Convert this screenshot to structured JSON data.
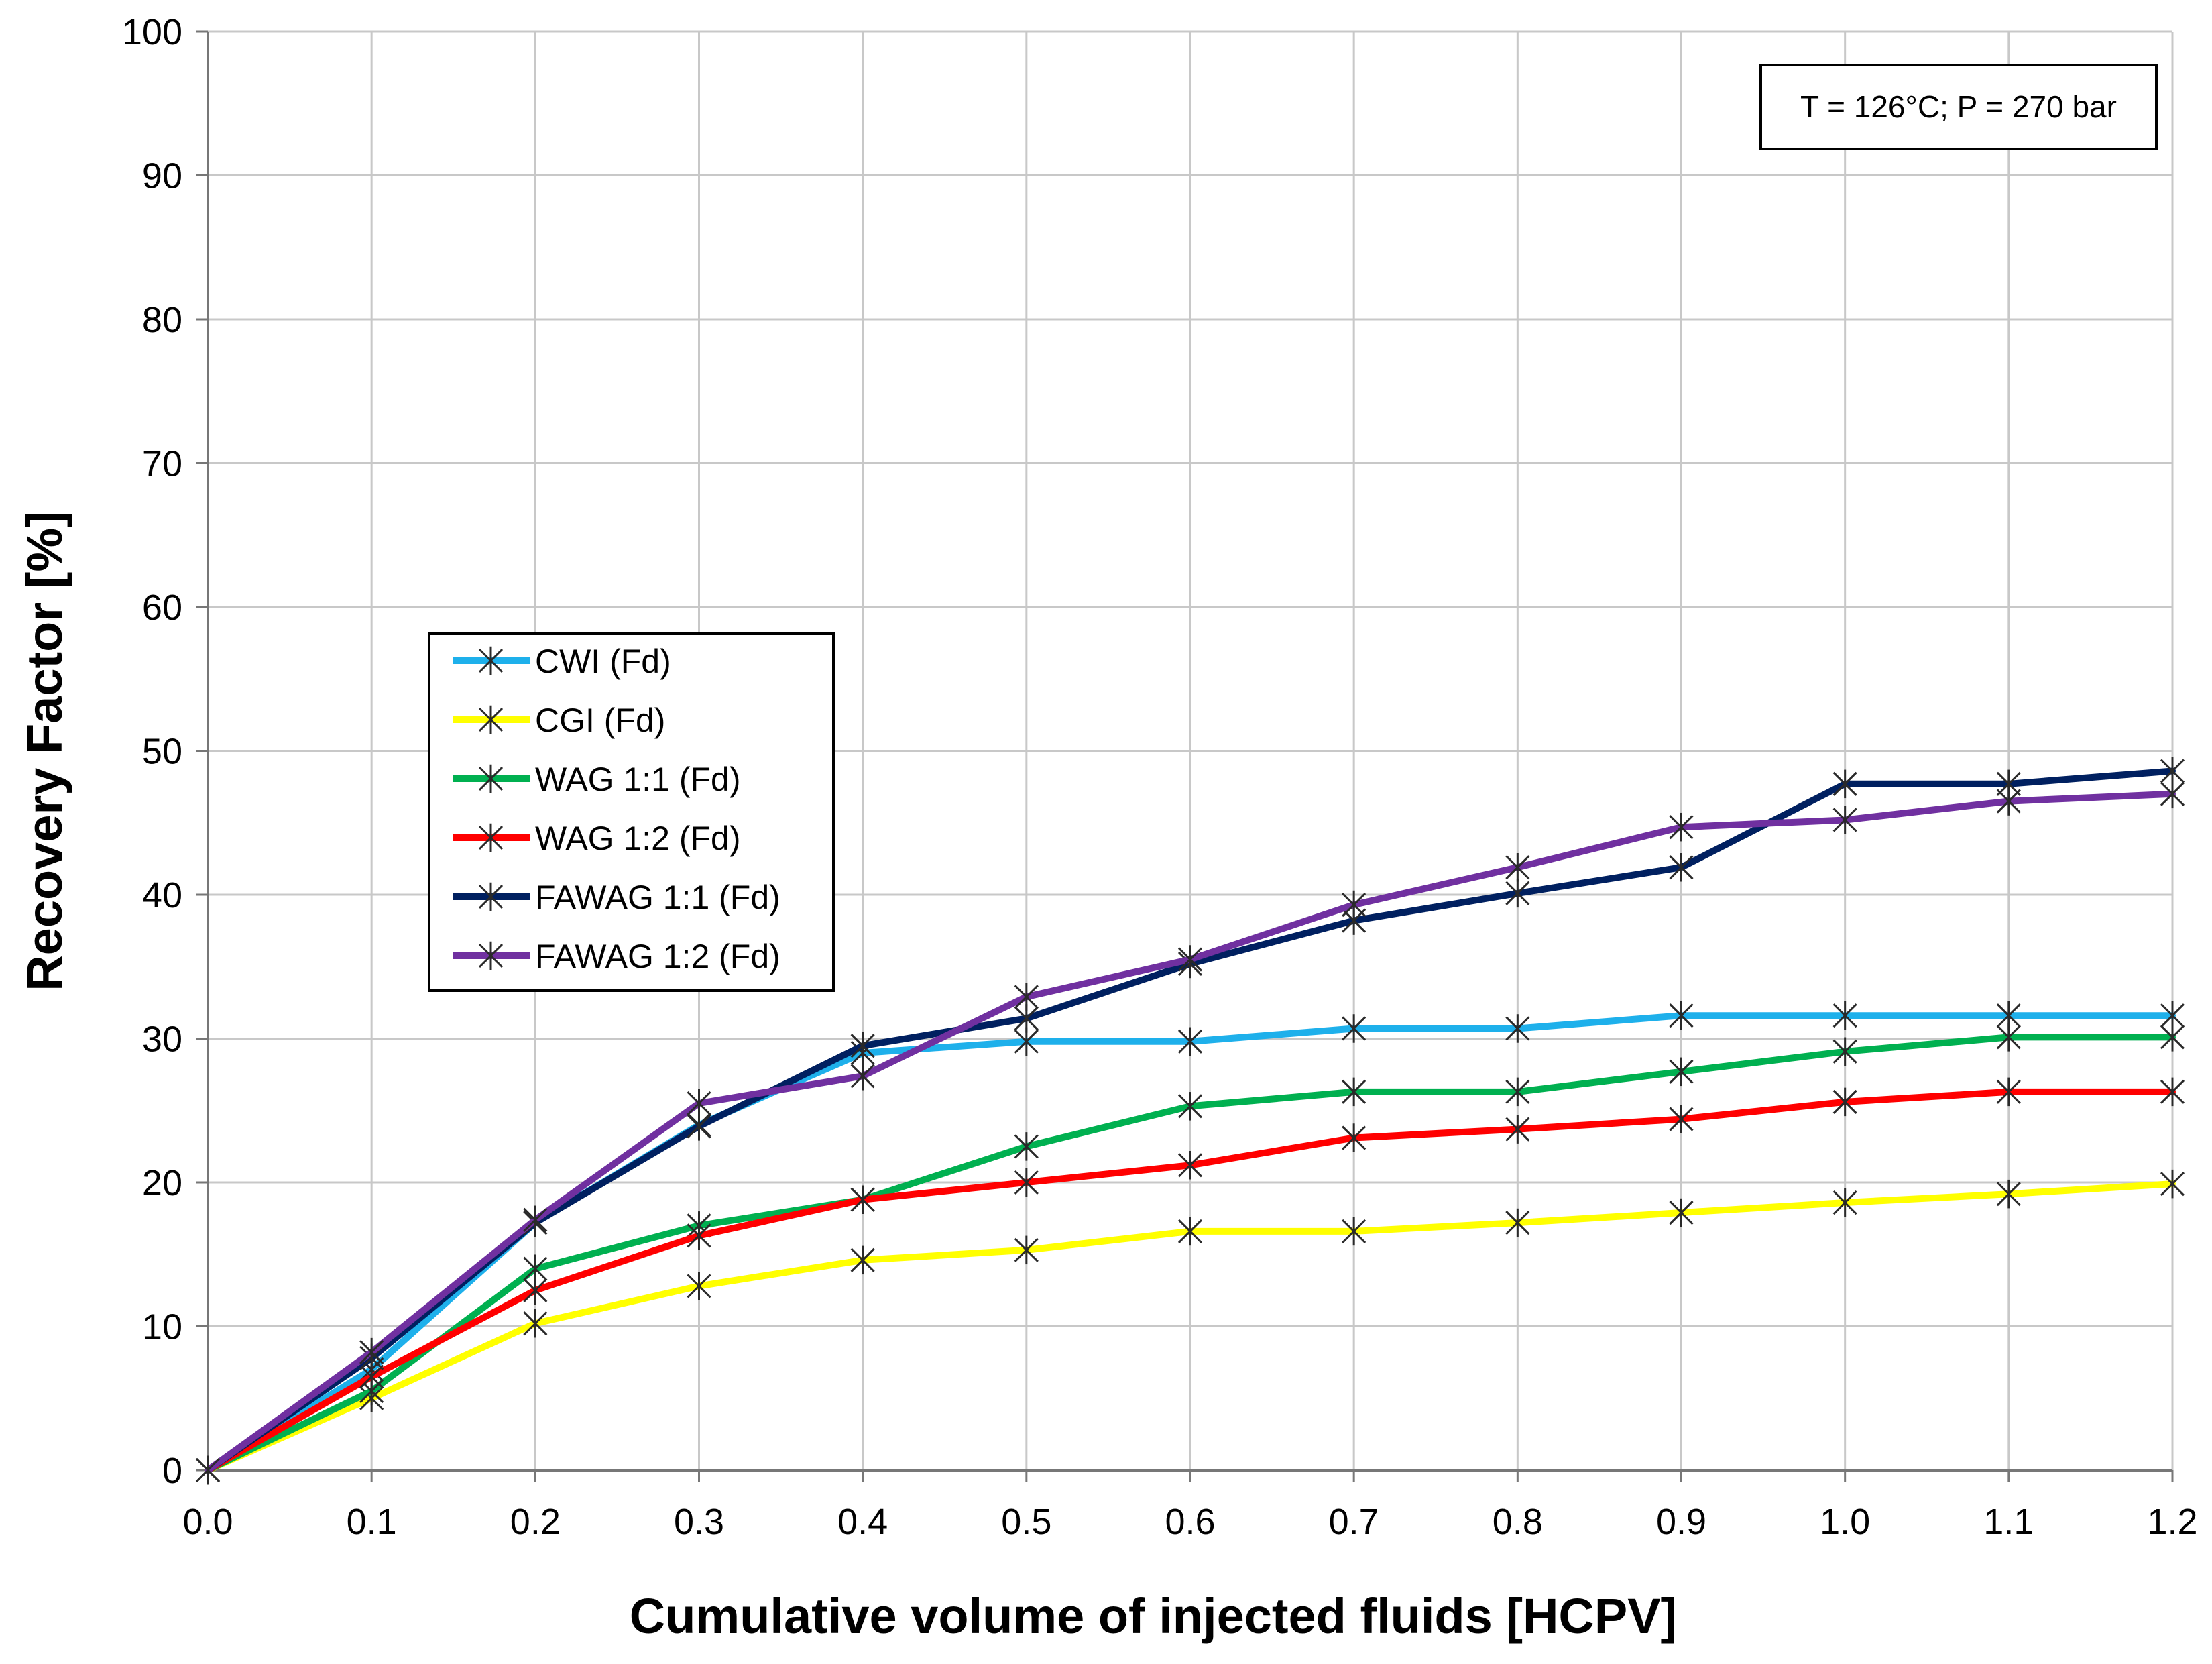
{
  "chart_data": {
    "type": "line",
    "title": "",
    "xlabel": "Cumulative volume of injected fluids [HCPV]",
    "ylabel": "Recovery Factor [%]",
    "xlim": [
      0,
      1.2
    ],
    "ylim": [
      0,
      100
    ],
    "grid": true,
    "legend_position": "center-left",
    "x_ticks": [
      "0.0",
      "0.1",
      "0.2",
      "0.3",
      "0.4",
      "0.5",
      "0.6",
      "0.7",
      "0.8",
      "0.9",
      "1.0",
      "1.1",
      "1.2"
    ],
    "y_ticks": [
      "0",
      "10",
      "20",
      "30",
      "40",
      "50",
      "60",
      "70",
      "80",
      "90",
      "100"
    ],
    "annotation": "T = 126°C; P = 270 bar",
    "x": [
      0.0,
      0.1,
      0.2,
      0.3,
      0.4,
      0.5,
      0.6,
      0.7,
      0.8,
      0.9,
      1.0,
      1.1,
      1.2
    ],
    "series": [
      {
        "name": "CWI (Fd)",
        "color": "#1EB0EB",
        "values": [
          0,
          7.0,
          17.2,
          24.0,
          29.0,
          29.8,
          29.8,
          30.7,
          30.7,
          31.6,
          31.6,
          31.6,
          31.6
        ]
      },
      {
        "name": "CGI (Fd)",
        "color": "#FFFF00",
        "values": [
          0,
          5.0,
          10.2,
          12.8,
          14.6,
          15.3,
          16.6,
          16.6,
          17.2,
          17.9,
          18.6,
          19.2,
          19.9
        ]
      },
      {
        "name": "WAG 1:1 (Fd)",
        "color": "#00B050",
        "values": [
          0,
          5.5,
          14.0,
          17.0,
          18.8,
          22.5,
          25.3,
          26.3,
          26.3,
          27.7,
          29.1,
          30.1,
          30.1
        ]
      },
      {
        "name": "WAG 1:2 (Fd)",
        "color": "#FF0000",
        "values": [
          0,
          6.5,
          12.5,
          16.3,
          18.8,
          20.0,
          21.2,
          23.1,
          23.7,
          24.4,
          25.6,
          26.3,
          26.3
        ]
      },
      {
        "name": "FAWAG 1:1 (Fd)",
        "color": "#002060",
        "values": [
          0,
          7.8,
          17.2,
          23.9,
          29.5,
          31.4,
          35.2,
          38.2,
          40.1,
          41.9,
          47.7,
          47.7,
          48.6
        ]
      },
      {
        "name": "FAWAG 1:2 (Fd)",
        "color": "#7030A0",
        "values": [
          0,
          8.2,
          17.4,
          25.5,
          27.4,
          32.9,
          35.5,
          39.3,
          41.9,
          44.7,
          45.2,
          46.5,
          47.0
        ]
      }
    ]
  }
}
